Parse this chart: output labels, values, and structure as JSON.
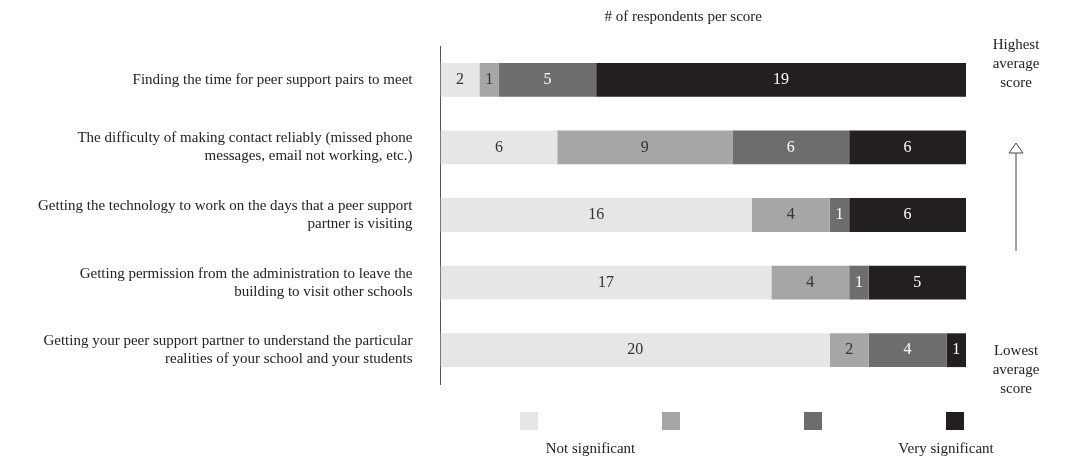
{
  "chart_data": {
    "type": "bar",
    "orientation": "horizontal",
    "stacked": true,
    "title": "# of respondents per score",
    "categories": [
      "Finding the time for peer support pairs to meet",
      "The difficulty of making contact reliably (missed phone messages, email not working, etc.)",
      "Getting the technology to work on the days that a peer support partner is visiting",
      "Getting permission from the administration to leave the building to visit other schools",
      "Getting your peer support partner to understand the particular realities of your school and your students"
    ],
    "series": [
      {
        "color": "#e6e6e6",
        "values": [
          2,
          6,
          16,
          17,
          20
        ]
      },
      {
        "color": "#a6a6a6",
        "values": [
          1,
          9,
          4,
          4,
          2
        ]
      },
      {
        "color": "#6d6d6d",
        "values": [
          5,
          6,
          1,
          1,
          4
        ]
      },
      {
        "color": "#231f20",
        "values": [
          19,
          6,
          6,
          5,
          1
        ]
      }
    ],
    "xlim": [
      0,
      27
    ],
    "tick_labels": "y",
    "data_labels": true,
    "grid": false,
    "annotations": [
      "Highest average score",
      "Lowest average score",
      "Not significant",
      "Very significant"
    ]
  }
}
